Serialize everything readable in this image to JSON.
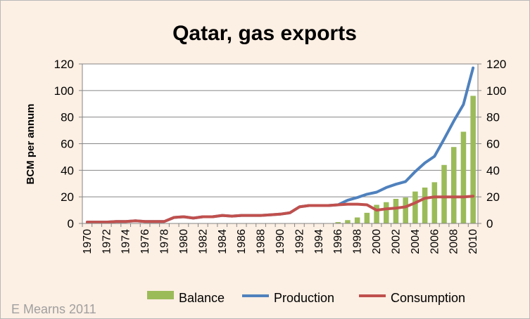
{
  "chart_data": {
    "type": "bar+line",
    "title": "Qatar, gas exports",
    "ylabel": "BCM per annum",
    "ylim": [
      0,
      120
    ],
    "yticks": [
      0,
      20,
      40,
      60,
      80,
      100,
      120
    ],
    "x": [
      1970,
      1971,
      1972,
      1973,
      1974,
      1975,
      1976,
      1977,
      1978,
      1979,
      1980,
      1981,
      1982,
      1983,
      1984,
      1985,
      1986,
      1987,
      1988,
      1989,
      1990,
      1991,
      1992,
      1993,
      1994,
      1995,
      1996,
      1997,
      1998,
      1999,
      2000,
      2001,
      2002,
      2003,
      2004,
      2005,
      2006,
      2007,
      2008,
      2009,
      2010
    ],
    "xtick_labels": [
      "1970",
      "1972",
      "1974",
      "1976",
      "1978",
      "1980",
      "1982",
      "1984",
      "1986",
      "1988",
      "1990",
      "1992",
      "1994",
      "1996",
      "1998",
      "2000",
      "2002",
      "2004",
      "2006",
      "2008",
      "2010"
    ],
    "series": [
      {
        "name": "Balance",
        "kind": "bar",
        "color": "#9bbb59",
        "values": [
          0,
          0,
          0,
          0,
          0,
          0,
          0,
          0,
          0,
          0,
          0,
          0,
          0,
          0,
          0,
          0,
          0,
          0,
          0,
          0,
          0,
          0,
          0,
          0,
          0,
          0,
          1,
          2.5,
          4.5,
          8,
          14,
          16,
          18.5,
          19.5,
          24,
          27,
          31,
          44,
          57.5,
          69,
          96
        ]
      },
      {
        "name": "Production",
        "kind": "line",
        "color": "#4f81bd",
        "values": [
          1,
          1,
          1,
          1.5,
          1.5,
          2,
          1.5,
          1.5,
          1.5,
          4.5,
          5,
          4,
          5,
          5,
          6,
          5.5,
          6,
          6,
          6,
          6.5,
          7,
          8,
          12.5,
          13.5,
          13.5,
          13.5,
          14,
          17.5,
          19.5,
          22,
          23.5,
          27,
          29.5,
          31.5,
          39,
          45.5,
          50.5,
          63.5,
          77,
          89.5,
          117
        ]
      },
      {
        "name": "Consumption",
        "kind": "line",
        "color": "#c0504d",
        "values": [
          1,
          1,
          1,
          1.5,
          1.5,
          2,
          1.5,
          1.5,
          1.5,
          4.5,
          5,
          4,
          5,
          5,
          6,
          5.5,
          6,
          6,
          6,
          6.5,
          7,
          8,
          12.5,
          13.5,
          13.5,
          13.5,
          14,
          14.5,
          14.5,
          14,
          10,
          11,
          11.5,
          12.5,
          15.5,
          19,
          20,
          20,
          20,
          20,
          20.5
        ]
      }
    ],
    "grid": true,
    "legend_position": "bottom"
  },
  "credit": "E Mearns 2011"
}
